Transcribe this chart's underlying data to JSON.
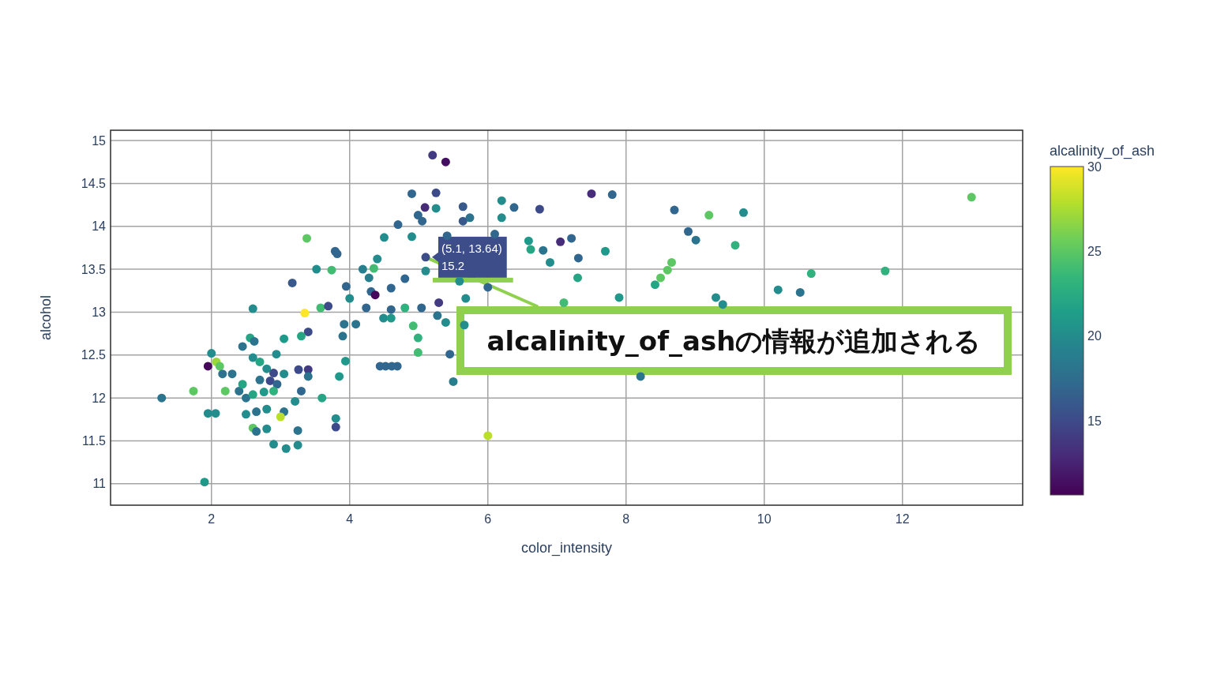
{
  "chart_data": {
    "type": "scatter",
    "xlabel": "color_intensity",
    "ylabel": "alcohol",
    "clabel": "alcalinity_of_ash",
    "x": [
      3.38,
      3.79,
      3.82,
      3.52,
      3.74,
      3.17,
      2.6,
      3.58,
      3.69,
      3.35,
      3.4,
      3.3,
      2.56,
      2.62,
      3.05,
      2.45,
      2.0,
      2.6,
      2.94,
      2.07,
      1.95,
      2.12,
      2.7,
      2.16,
      2.3,
      2.8,
      2.9,
      2.7,
      2.85,
      2.95,
      3.05,
      3.26,
      3.4,
      3.4,
      3.85,
      1.74,
      1.28,
      2.2,
      2.4,
      2.45,
      2.5,
      2.6,
      2.76,
      2.9,
      3.3,
      3.6,
      3.21,
      1.95,
      2.06,
      2.5,
      2.65,
      2.8,
      3.05,
      3.0,
      2.6,
      2.65,
      2.8,
      3.25,
      3.8,
      3.8,
      2.9,
      3.08,
      3.25,
      1.9,
      5.2,
      5.39,
      4.9,
      5.25,
      5.09,
      5.25,
      5.64,
      6.2,
      6.38,
      6.75,
      4.99,
      5.05,
      5.64,
      5.74,
      6.2,
      4.7,
      4.5,
      4.9,
      5.41,
      6.1,
      6.59,
      6.62,
      6.8,
      7.05,
      7.21,
      6.9,
      7.3,
      5.1,
      5.1,
      4.4,
      4.19,
      4.35,
      4.28,
      4.8,
      3.95,
      4.6,
      4.31,
      4.37,
      4.0,
      5.59,
      6.0,
      5.68,
      5.29,
      4.24,
      4.6,
      4.8,
      5.04,
      4.49,
      4.6,
      5.27,
      5.39,
      3.92,
      4.09,
      3.9,
      4.92,
      4.99,
      4.99,
      3.94,
      5.45,
      4.44,
      4.52,
      4.61,
      4.69,
      5.5,
      6.0,
      7.1,
      5.66,
      7.5,
      7.8,
      8.7,
      9.2,
      9.7,
      13.0,
      8.9,
      9.01,
      9.58,
      7.31,
      7.7,
      7.9,
      8.66,
      8.6,
      8.5,
      8.42,
      9.3,
      9.4,
      10.2,
      10.52,
      10.68,
      11.75,
      8.21
    ],
    "values": [
      13.86,
      13.71,
      13.68,
      13.5,
      13.49,
      13.34,
      13.04,
      13.05,
      13.07,
      12.99,
      12.77,
      12.72,
      12.7,
      12.66,
      12.69,
      12.6,
      12.52,
      12.47,
      12.51,
      12.42,
      12.37,
      12.37,
      12.42,
      12.28,
      12.28,
      12.34,
      12.29,
      12.21,
      12.2,
      12.16,
      12.28,
      12.33,
      12.33,
      12.25,
      12.25,
      12.08,
      12.0,
      12.08,
      12.08,
      12.16,
      12.0,
      12.04,
      12.07,
      12.08,
      12.08,
      12.0,
      11.96,
      11.82,
      11.82,
      11.81,
      11.84,
      11.87,
      11.84,
      11.78,
      11.65,
      11.61,
      11.64,
      11.62,
      11.76,
      11.66,
      11.46,
      11.41,
      11.45,
      11.02,
      14.83,
      14.75,
      14.38,
      14.39,
      14.22,
      14.21,
      14.23,
      14.3,
      14.22,
      14.2,
      14.13,
      14.06,
      14.06,
      14.1,
      14.1,
      14.02,
      13.87,
      13.88,
      13.89,
      13.91,
      13.83,
      13.73,
      13.72,
      13.82,
      13.86,
      13.58,
      13.4,
      13.64,
      13.48,
      13.62,
      13.5,
      13.51,
      13.4,
      13.39,
      13.3,
      13.28,
      13.24,
      13.2,
      13.16,
      13.36,
      13.29,
      13.16,
      13.11,
      13.05,
      13.03,
      13.05,
      13.05,
      12.93,
      12.93,
      12.96,
      12.88,
      12.86,
      12.86,
      12.72,
      12.84,
      12.7,
      12.53,
      12.43,
      12.51,
      12.37,
      12.37,
      12.37,
      12.37,
      12.19,
      11.56,
      13.11,
      12.85,
      14.38,
      14.37,
      14.19,
      14.13,
      14.16,
      14.34,
      13.94,
      13.84,
      13.78,
      13.63,
      13.71,
      13.17,
      13.58,
      13.49,
      13.4,
      13.32,
      13.17,
      13.09,
      13.26,
      13.23,
      13.45,
      13.48,
      12.25
    ],
    "cvalues": [
      25,
      17,
      17,
      20,
      24,
      16,
      20,
      24,
      15,
      30,
      15,
      22,
      22,
      18,
      21,
      18,
      20,
      20,
      20,
      27,
      11,
      25,
      22,
      18,
      18,
      20,
      15,
      18,
      15,
      17,
      20,
      15,
      14,
      18,
      21,
      25,
      18,
      25,
      18,
      22,
      18,
      22,
      21,
      23,
      17,
      22,
      20,
      20,
      20,
      20,
      18,
      20,
      18,
      28,
      25,
      18,
      20,
      18,
      20,
      15,
      20,
      20,
      20,
      21,
      14,
      11.4,
      17,
      15,
      13,
      20,
      16,
      20,
      17,
      15,
      17,
      17,
      16,
      18,
      20,
      17,
      20,
      20,
      17,
      17,
      21,
      22,
      18,
      13,
      17,
      20,
      22,
      15.2,
      20,
      20,
      19,
      24,
      19,
      17,
      17,
      17,
      17,
      11,
      20,
      20,
      17,
      20,
      14,
      17,
      17,
      23,
      17,
      20,
      21,
      18,
      20,
      18,
      18,
      18,
      24,
      23,
      24,
      21,
      17,
      17,
      17,
      17,
      17,
      19,
      28,
      24,
      20,
      13,
      17,
      17,
      25,
      20,
      25,
      17,
      18,
      23,
      17,
      21,
      21,
      25,
      25,
      25,
      22,
      20,
      20,
      20,
      18,
      23,
      23,
      18
    ],
    "xlim": [
      0.54,
      13.74
    ],
    "ylim": [
      10.75,
      15.12
    ],
    "xticks": [
      2,
      4,
      6,
      8,
      10,
      12
    ],
    "yticks": [
      11,
      11.5,
      12,
      12.5,
      13,
      13.5,
      14,
      14.5,
      15
    ],
    "clim": [
      10.6,
      30
    ],
    "cticks": [
      15,
      20,
      25,
      30
    ],
    "grid": true,
    "marker": "circle",
    "annotations": [
      {
        "text": "(5.1, 13.64)\n15.2",
        "x": 5.1,
        "y": 13.64
      },
      {
        "text": "alcalinity_of_ashの情報が追加される",
        "x": 5.1,
        "y": 13.64
      }
    ]
  }
}
